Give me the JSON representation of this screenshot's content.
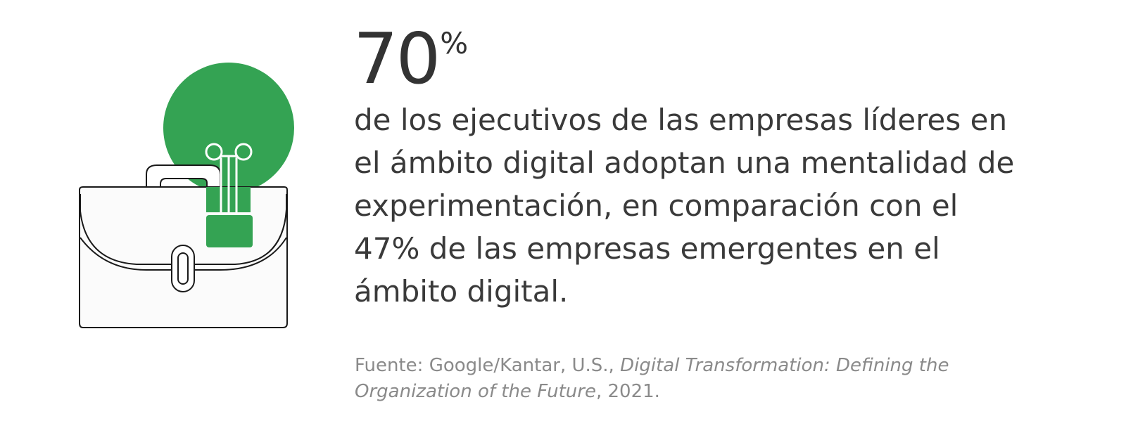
{
  "stat": {
    "value": "70",
    "unit": "%"
  },
  "description": {
    "lines": [
      "de los ejecutivos de las empresas líderes en",
      "el ámbito digital adoptan una mentalidad de",
      "experimentación, en comparación con el",
      "47% de las empresas emergentes en el",
      "ámbito digital."
    ]
  },
  "source": {
    "prefix": "Fuente: Google/Kantar, U.S., ",
    "title_part1": "Digital Transformation: Defining the",
    "title_part2": "Organization of the Future",
    "suffix": ", 2021."
  },
  "colors": {
    "accent": "#34a353",
    "text": "#3a3a3a",
    "source_text": "#8a8a8a"
  },
  "icons": {
    "illustration": "briefcase-lightbulb-icon"
  }
}
